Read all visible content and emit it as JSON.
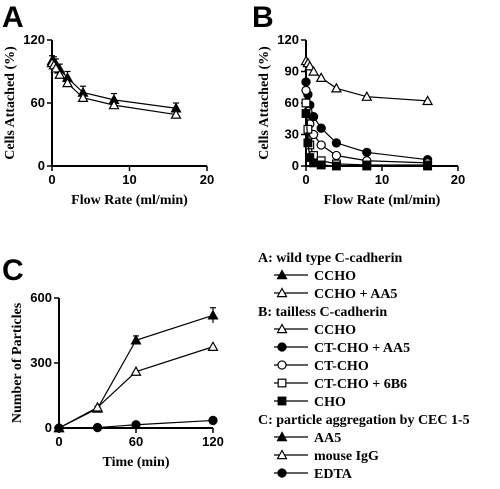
{
  "chart_data": [
    {
      "panel": "A",
      "type": "line",
      "xlabel": "Flow Rate (ml/min)",
      "ylabel": "Cells Attached (%)",
      "xlim": [
        0,
        20
      ],
      "ylim": [
        0,
        120
      ],
      "xticks": [
        0,
        10,
        20
      ],
      "yticks": [
        0,
        60,
        120
      ],
      "series": [
        {
          "name": "CCHO",
          "marker": "filled-triangle",
          "x": [
            0,
            0.25,
            0.5,
            1,
            2,
            4,
            8,
            16
          ],
          "y": [
            100,
            99,
            97,
            92,
            84,
            70,
            63,
            55
          ],
          "err": [
            5,
            5,
            5,
            5,
            6,
            6,
            6,
            5
          ]
        },
        {
          "name": "CCHO + AA5",
          "marker": "open-triangle",
          "x": [
            0,
            0.25,
            0.5,
            1,
            2,
            4,
            8,
            16
          ],
          "y": [
            98,
            96,
            93,
            87,
            79,
            65,
            58,
            49
          ],
          "err": [
            0,
            0,
            0,
            0,
            0,
            0,
            0,
            0
          ]
        }
      ]
    },
    {
      "panel": "B",
      "type": "line",
      "xlabel": "Flow Rate (ml/min)",
      "ylabel": "Cells Attached (%)",
      "xlim": [
        0,
        20
      ],
      "ylim": [
        0,
        120
      ],
      "xticks": [
        0,
        10,
        20
      ],
      "yticks": [
        0,
        30,
        60,
        90,
        120
      ],
      "series": [
        {
          "name": "CCHO",
          "marker": "open-triangle",
          "x": [
            0,
            0.25,
            0.5,
            1,
            2,
            4,
            8,
            16
          ],
          "y": [
            100,
            98,
            95,
            90,
            84,
            74,
            66,
            62
          ]
        },
        {
          "name": "CT-CHO + AA5",
          "marker": "filled-circle",
          "x": [
            0,
            0.25,
            0.5,
            1,
            2,
            4,
            8,
            16
          ],
          "y": [
            80,
            68,
            58,
            47,
            36,
            22,
            13,
            6
          ]
        },
        {
          "name": "CT-CHO",
          "marker": "open-circle",
          "x": [
            0,
            0.25,
            0.5,
            1,
            2,
            4,
            8,
            16
          ],
          "y": [
            72,
            52,
            40,
            30,
            20,
            10,
            5,
            3
          ]
        },
        {
          "name": "CT-CHO + 6B6",
          "marker": "open-square",
          "x": [
            0,
            0.25,
            0.5,
            1,
            2,
            4,
            8,
            16
          ],
          "y": [
            60,
            35,
            20,
            10,
            5,
            2,
            1,
            1
          ]
        },
        {
          "name": "CHO",
          "marker": "filled-square",
          "x": [
            0,
            0.25,
            0.5,
            1,
            2,
            4,
            8,
            16
          ],
          "y": [
            50,
            22,
            8,
            3,
            1,
            0,
            0,
            0
          ]
        }
      ]
    },
    {
      "panel": "C",
      "type": "line",
      "xlabel": "Time (min)",
      "ylabel": "Number of Particles",
      "xlim": [
        0,
        120
      ],
      "ylim": [
        0,
        600
      ],
      "xticks": [
        0,
        60,
        120
      ],
      "yticks": [
        0,
        300,
        600
      ],
      "series": [
        {
          "name": "AA5",
          "marker": "filled-triangle",
          "x": [
            0,
            30,
            60,
            120
          ],
          "y": [
            0,
            90,
            405,
            520
          ],
          "err": [
            0,
            10,
            20,
            35
          ]
        },
        {
          "name": "mouse IgG",
          "marker": "open-triangle",
          "x": [
            0,
            30,
            60,
            120
          ],
          "y": [
            0,
            95,
            260,
            375
          ],
          "err": [
            0,
            0,
            0,
            0
          ]
        },
        {
          "name": "EDTA",
          "marker": "filled-circle",
          "x": [
            0,
            30,
            60,
            120
          ],
          "y": [
            0,
            2,
            15,
            35
          ],
          "err": [
            0,
            0,
            0,
            0
          ]
        }
      ]
    }
  ],
  "legend": {
    "groups": [
      {
        "title": "A: wild type C-cadherin",
        "items": [
          {
            "label": "CCHO",
            "marker": "filled-triangle"
          },
          {
            "label": "CCHO + AA5",
            "marker": "open-triangle"
          }
        ]
      },
      {
        "title": "B: tailless C-cadherin",
        "items": [
          {
            "label": "CCHO",
            "marker": "open-triangle"
          },
          {
            "label": "CT-CHO + AA5",
            "marker": "filled-circle"
          },
          {
            "label": "CT-CHO",
            "marker": "open-circle"
          },
          {
            "label": "CT-CHO + 6B6",
            "marker": "open-square"
          },
          {
            "label": "CHO",
            "marker": "filled-square"
          }
        ]
      },
      {
        "title": "C: particle aggregation by CEC 1-5",
        "items": [
          {
            "label": "AA5",
            "marker": "filled-triangle"
          },
          {
            "label": "mouse IgG",
            "marker": "open-triangle"
          },
          {
            "label": "EDTA",
            "marker": "filled-circle"
          }
        ]
      }
    ]
  }
}
